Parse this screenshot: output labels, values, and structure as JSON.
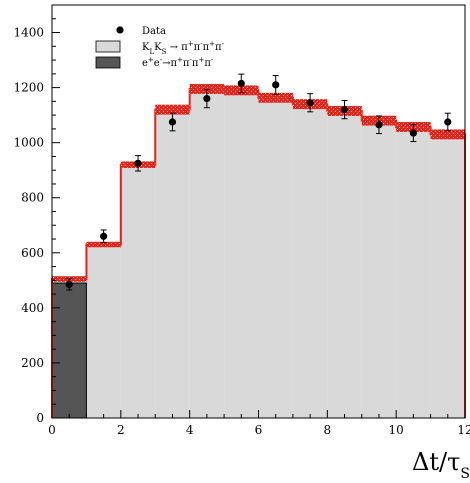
{
  "chart_data": {
    "type": "bar",
    "title": "",
    "xlabel": "Δt/τ",
    "xlabel_sub": "S",
    "ylabel": "",
    "xlim": [
      0,
      12
    ],
    "ylim": [
      0,
      1500
    ],
    "xticks": [
      "0",
      "2",
      "4",
      "6",
      "8",
      "10",
      "12"
    ],
    "yticks": [
      "0",
      "200",
      "400",
      "600",
      "800",
      "1000",
      "1200",
      "1400"
    ],
    "bin_edges": [
      0,
      1,
      2,
      3,
      4,
      5,
      6,
      7,
      8,
      9,
      10,
      11,
      12
    ],
    "series": [
      {
        "name": "K_L K_S → π⁺π⁻π⁺π⁻",
        "style": "filled-histogram",
        "color": "#d9d9d9",
        "values": [
          505,
          630,
          920,
          1120,
          1195,
          1190,
          1163,
          1140,
          1115,
          1080,
          1057,
          1030
        ]
      },
      {
        "name": "e⁺e⁻→π⁺π⁻π⁺π⁻",
        "style": "filled-histogram",
        "color": "#555555",
        "values": [
          490,
          0,
          0,
          0,
          0,
          0,
          0,
          0,
          0,
          0,
          0,
          0
        ]
      },
      {
        "name": "Data",
        "style": "points-with-errors",
        "color": "#000000",
        "x": [
          0.5,
          1.5,
          2.5,
          3.5,
          4.5,
          5.5,
          6.5,
          7.5,
          8.5,
          9.5,
          10.5,
          11.5
        ],
        "values": [
          485,
          660,
          925,
          1075,
          1160,
          1215,
          1210,
          1145,
          1120,
          1065,
          1035,
          1075
        ],
        "errors": [
          20,
          23,
          28,
          32,
          33,
          34,
          34,
          33,
          33,
          32,
          31,
          32
        ]
      }
    ],
    "uncertainty_band": {
      "color": "#e8231a",
      "half_width": [
        10,
        10,
        12,
        18,
        18,
        18,
        18,
        18,
        18,
        18,
        18,
        18
      ]
    },
    "legend": {
      "position": "top-left",
      "entries": [
        {
          "label": "Data",
          "marker": "dot"
        },
        {
          "label": "K",
          "sub1": "L",
          "mid": "K",
          "sub2": "S",
          "tail": " → π",
          "sups": [
            "+",
            "-",
            "+",
            "-"
          ],
          "marker": "box-light"
        },
        {
          "label": "e",
          "sups2": [
            "+",
            "-"
          ],
          "tail": "→π",
          "sups": [
            "+",
            "-",
            "+",
            "-"
          ],
          "marker": "box-dark"
        }
      ]
    },
    "grid": false
  }
}
